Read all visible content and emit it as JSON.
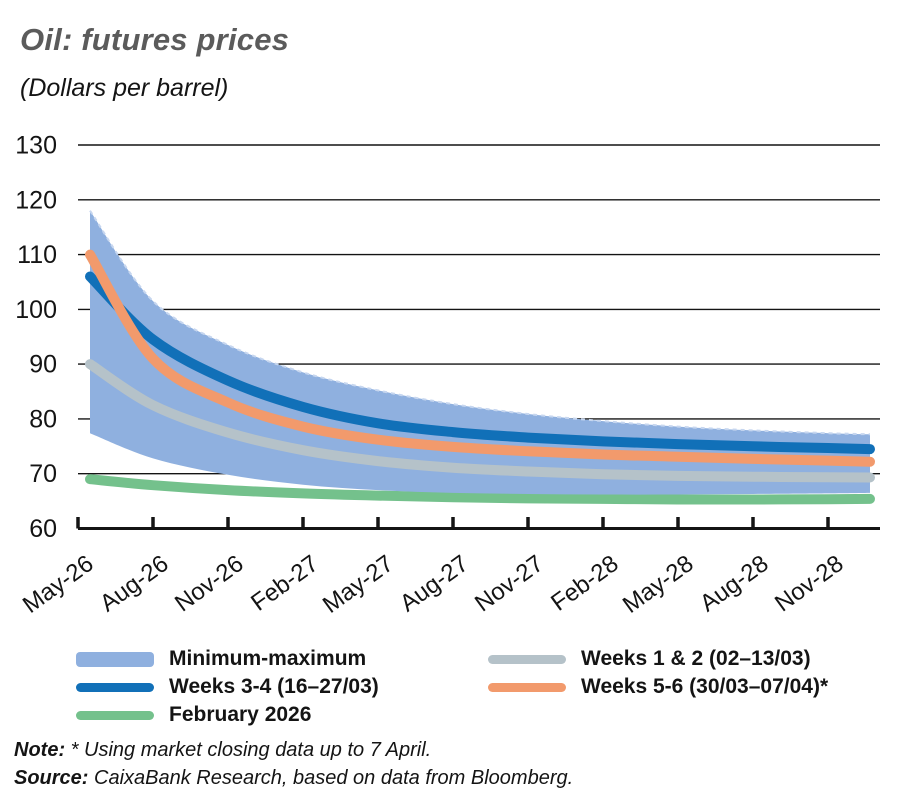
{
  "chart_data": {
    "type": "line",
    "title": "Oil: futures prices",
    "subtitle": "(Dollars per barrel)",
    "ylabel": "Dollars per barrel",
    "ylim": [
      60,
      130
    ],
    "y_ticks": [
      130,
      120,
      110,
      100,
      90,
      80,
      70,
      60
    ],
    "x_tick_labels": [
      "May-26",
      "Aug-26",
      "Nov-26",
      "Feb-27",
      "May-27",
      "Aug-27",
      "Nov-27",
      "Feb-28",
      "May-28",
      "Aug-28",
      "Nov-28"
    ],
    "x_pos": [
      0.16,
      1,
      2,
      3,
      4,
      5,
      6,
      7,
      8,
      9,
      10,
      10.56
    ],
    "grid": true,
    "legend_position": "bottom",
    "band": {
      "name": "Minimum-maximum",
      "color": "#8FB0DF",
      "max": [
        118,
        101.5,
        93.5,
        88.5,
        85.2,
        82.7,
        80.9,
        79.6,
        78.6,
        77.9,
        77.4,
        77.2
      ],
      "min": [
        77.4,
        72.8,
        69.8,
        68.0,
        67.0,
        66.5,
        66.3,
        66.2,
        66.2,
        66.3,
        66.4,
        66.5
      ]
    },
    "series": [
      {
        "name": "Weeks 1 & 2 (02–13/03)",
        "color": "#B5C2C9",
        "values": [
          90,
          82.5,
          77.5,
          74.3,
          72.3,
          71.1,
          70.4,
          69.9,
          69.6,
          69.45,
          69.35,
          69.3
        ]
      },
      {
        "name": "Weeks 3-4 (16–27/03)",
        "color": "#1170B8",
        "values": [
          106,
          94.5,
          87.0,
          82.2,
          79.2,
          77.6,
          76.6,
          75.9,
          75.4,
          75.0,
          74.7,
          74.5
        ]
      },
      {
        "name": "Weeks 5-6 (30/03–07/04)*",
        "color": "#F29A6C",
        "values": [
          110,
          91,
          83,
          78.6,
          76.2,
          74.9,
          74.1,
          73.5,
          73.1,
          72.7,
          72.4,
          72.2
        ]
      },
      {
        "name": "February 2026",
        "color": "#74C18C",
        "values": [
          69,
          67.9,
          67.0,
          66.4,
          66.0,
          65.7,
          65.5,
          65.4,
          65.3,
          65.3,
          65.35,
          65.4
        ]
      }
    ],
    "axis_color": "#141414"
  },
  "footer": {
    "note_label": "Note:",
    "note_text": " * Using market closing data up to 7 April.",
    "source_label": "Source:",
    "source_text": " CaixaBank Research, based on data from Bloomberg."
  }
}
